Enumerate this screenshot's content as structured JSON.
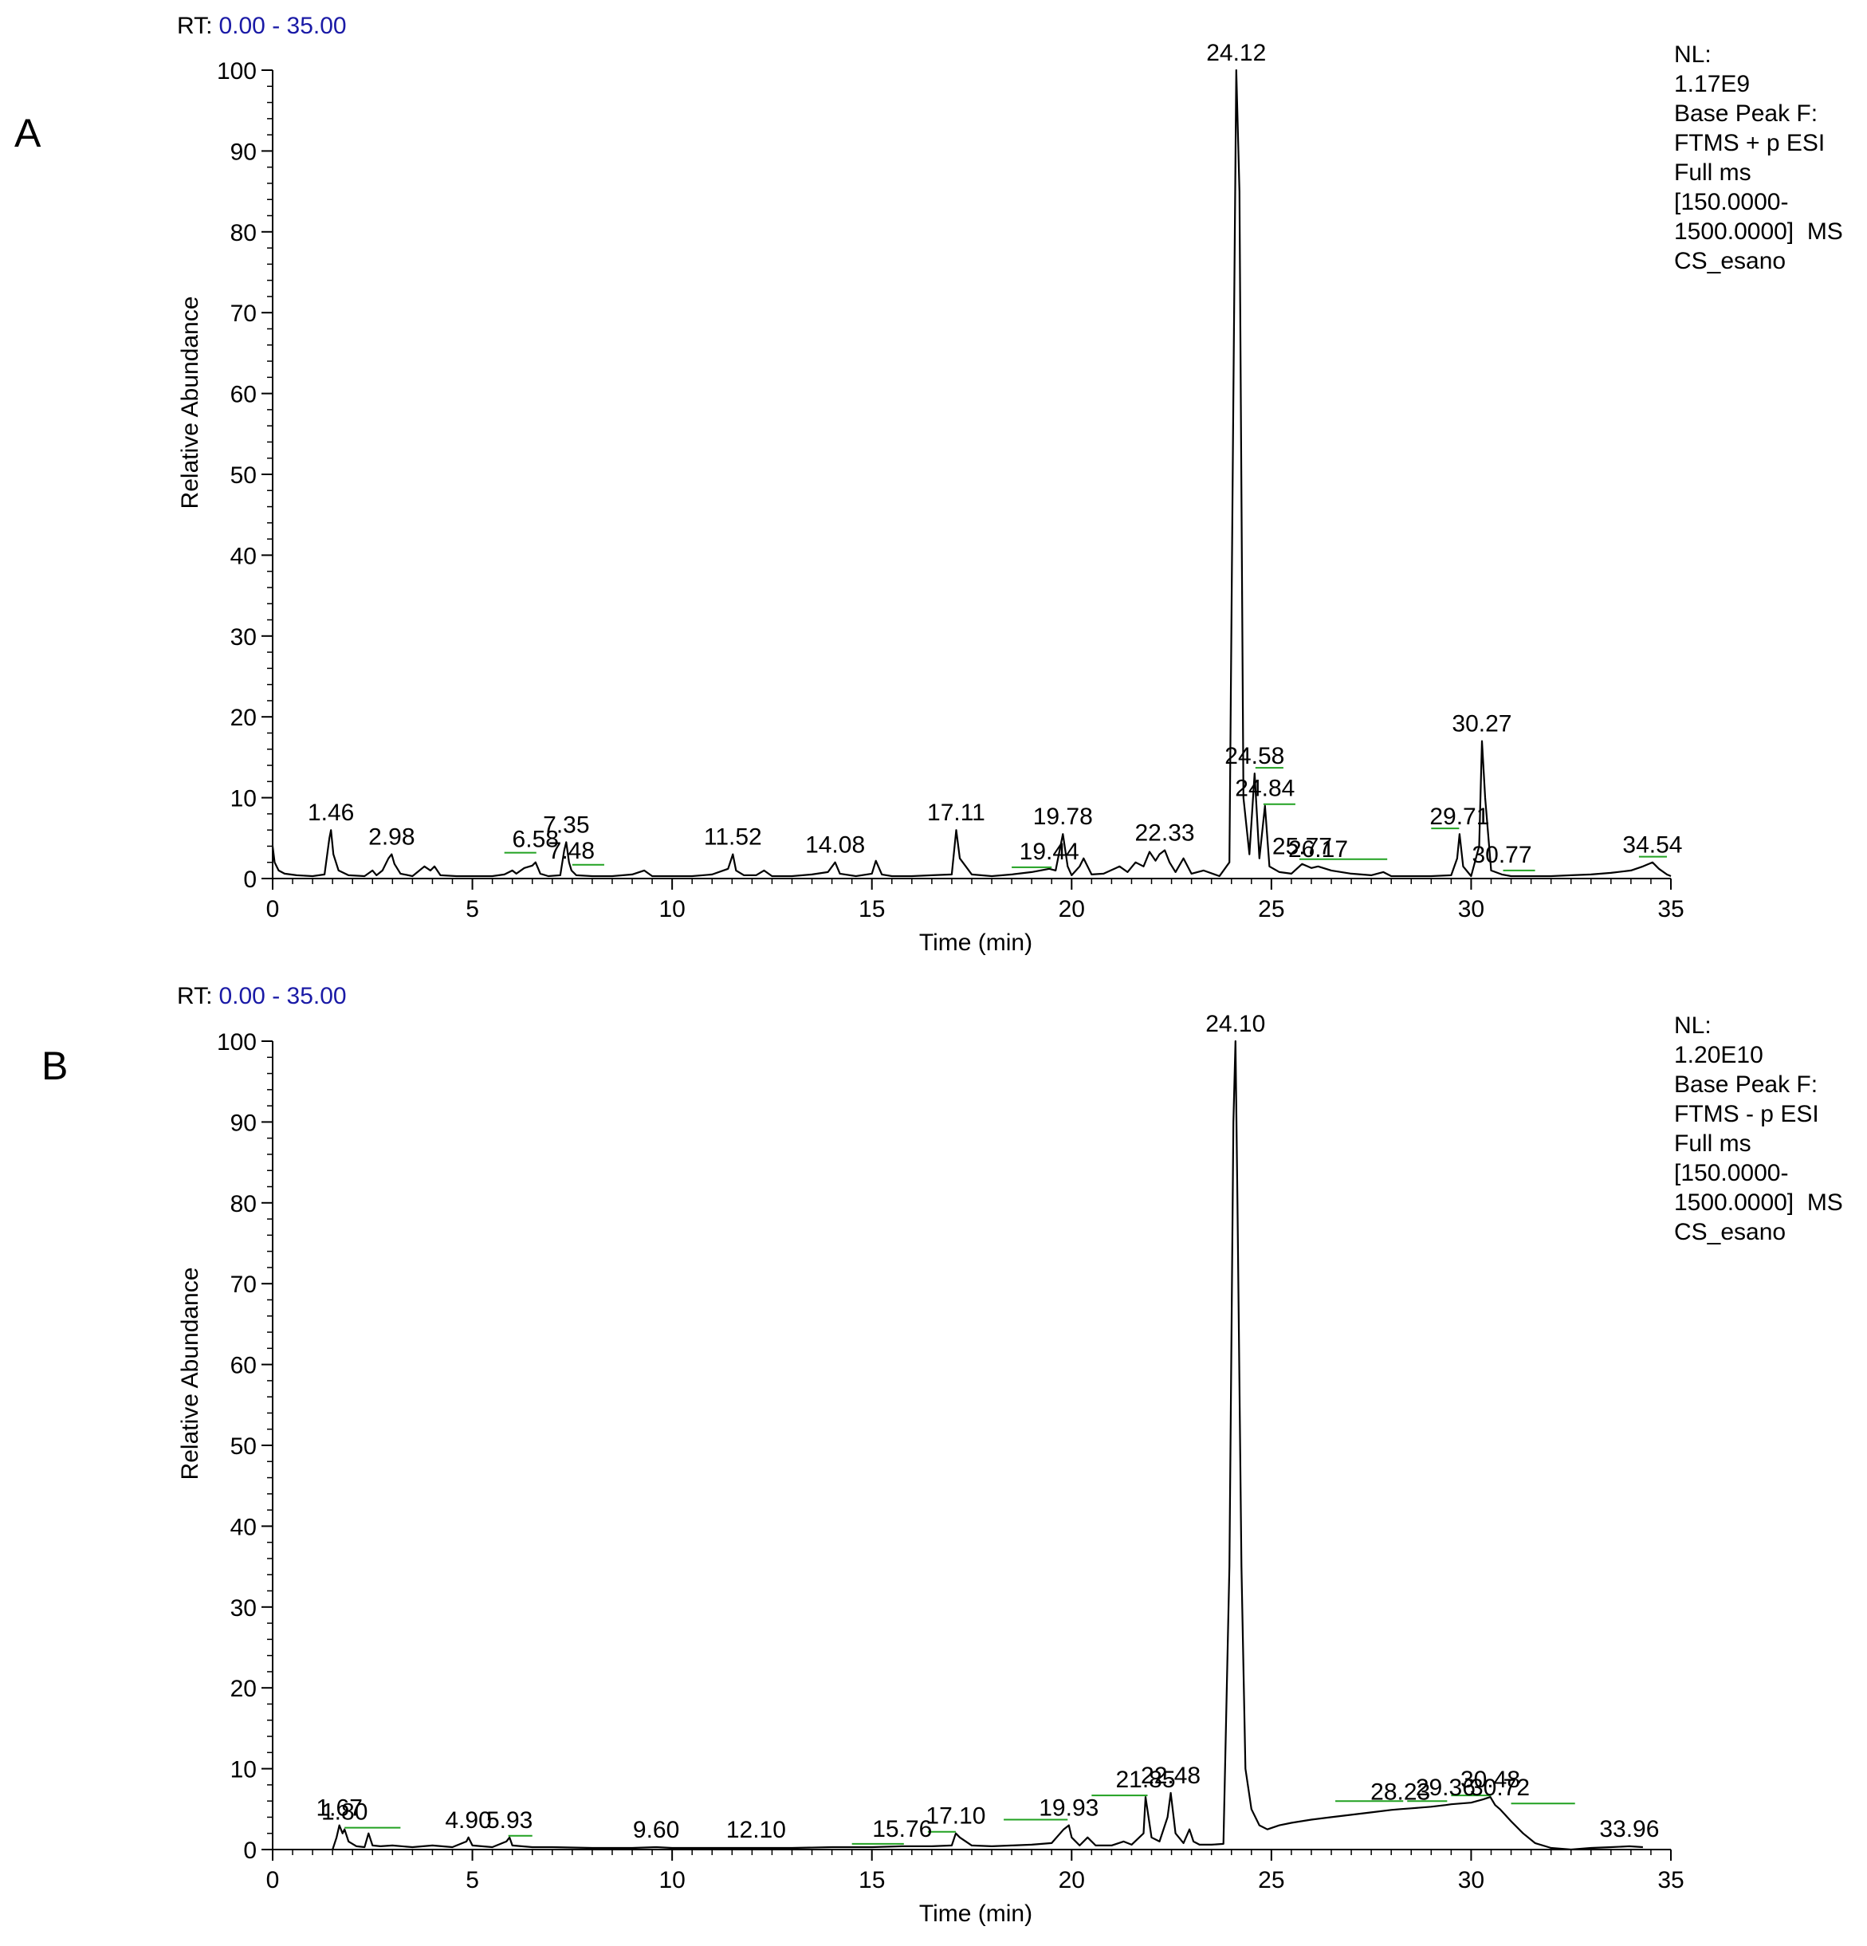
{
  "chart_data": [
    {
      "type": "line",
      "panel": "A",
      "rt_label": "RT:",
      "rt_range": "0.00 - 35.00",
      "xlabel": "Time (min)",
      "ylabel": "Relative Abundance",
      "xlim": [
        0,
        35
      ],
      "ylim": [
        0,
        100
      ],
      "x_ticks": [
        "0",
        "5",
        "10",
        "15",
        "20",
        "25",
        "30",
        "35"
      ],
      "y_ticks": [
        "0",
        "10",
        "20",
        "30",
        "40",
        "50",
        "60",
        "70",
        "80",
        "90",
        "100"
      ],
      "info": [
        "NL:",
        "1.17E9",
        "Base Peak F:",
        "FTMS + p ESI",
        "Full ms",
        "[150.0000-",
        "1500.0000]  MS",
        "CS_esano"
      ],
      "series": [
        {
          "x": [
            0,
            0.05,
            0.15,
            0.3,
            0.6,
            1.0,
            1.3,
            1.42,
            1.46,
            1.52,
            1.65,
            1.9,
            2.3,
            2.5,
            2.6,
            2.75,
            2.9,
            2.98,
            3.05,
            3.2,
            3.5,
            3.8,
            3.95,
            4.05,
            4.2,
            4.6,
            5.0,
            5.5,
            5.8,
            6.0,
            6.1,
            6.3,
            6.5,
            6.58,
            6.7,
            6.9,
            7.2,
            7.3,
            7.35,
            7.42,
            7.48,
            7.6,
            8.0,
            8.5,
            9.0,
            9.3,
            9.5,
            10.0,
            10.5,
            11.0,
            11.4,
            11.52,
            11.6,
            11.8,
            12.1,
            12.3,
            12.5,
            13.0,
            13.5,
            13.9,
            14.08,
            14.2,
            14.6,
            15.0,
            15.1,
            15.25,
            15.5,
            16.0,
            16.5,
            17.0,
            17.11,
            17.2,
            17.5,
            18.0,
            18.5,
            19.0,
            19.44,
            19.6,
            19.78,
            19.9,
            20.0,
            20.2,
            20.3,
            20.5,
            20.8,
            21.2,
            21.4,
            21.6,
            21.8,
            21.95,
            22.1,
            22.2,
            22.33,
            22.45,
            22.6,
            22.8,
            23.0,
            23.3,
            23.7,
            23.95,
            24.05,
            24.12,
            24.2,
            24.3,
            24.45,
            24.58,
            24.7,
            24.84,
            24.95,
            25.2,
            25.5,
            25.77,
            26.0,
            26.17,
            26.5,
            27.0,
            27.5,
            27.8,
            28.0,
            28.5,
            29.0,
            29.5,
            29.65,
            29.71,
            29.8,
            30.0,
            30.2,
            30.27,
            30.35,
            30.5,
            30.77,
            31.0,
            31.5,
            32.0,
            32.5,
            33.0,
            33.5,
            34.0,
            34.3,
            34.54,
            34.7,
            34.9,
            35.0
          ],
          "y": [
            4,
            2,
            1,
            0.6,
            0.4,
            0.3,
            0.5,
            5,
            6,
            3,
            1,
            0.4,
            0.3,
            1.0,
            0.4,
            1.0,
            2.5,
            3,
            1.8,
            0.6,
            0.3,
            1.5,
            1.0,
            1.5,
            0.4,
            0.3,
            0.3,
            0.3,
            0.5,
            1.0,
            0.6,
            1.3,
            1.6,
            2,
            0.6,
            0.3,
            0.4,
            3.5,
            4.5,
            2.0,
            1.0,
            0.4,
            0.3,
            0.3,
            0.5,
            1.0,
            0.3,
            0.3,
            0.3,
            0.5,
            1.2,
            3,
            1.0,
            0.4,
            0.4,
            1.0,
            0.3,
            0.3,
            0.5,
            0.8,
            2,
            0.6,
            0.3,
            0.6,
            2.2,
            0.5,
            0.3,
            0.3,
            0.4,
            0.5,
            6,
            2.5,
            0.5,
            0.3,
            0.5,
            0.8,
            1.2,
            1.0,
            5.5,
            1.5,
            0.4,
            1.5,
            2.5,
            0.5,
            0.6,
            1.5,
            0.8,
            2,
            1.5,
            3.3,
            2.2,
            3.0,
            3.5,
            2.0,
            0.8,
            2.5,
            0.6,
            1.0,
            0.3,
            2.0,
            60,
            100,
            85,
            10,
            3,
            13,
            2.5,
            9,
            1.5,
            0.8,
            0.6,
            1.8,
            1.3,
            1.5,
            1.0,
            0.6,
            0.4,
            0.8,
            0.3,
            0.3,
            0.3,
            0.4,
            2.5,
            5.5,
            1.5,
            0.3,
            4.0,
            17,
            10,
            1.0,
            0.5,
            0.3,
            0.3,
            0.3,
            0.4,
            0.5,
            0.7,
            1.0,
            1.5,
            2.0,
            1.2,
            0.5,
            0.3
          ]
        }
      ],
      "peak_labels": [
        {
          "text": "1.46",
          "x": 1.46,
          "y": 6
        },
        {
          "text": "2.98",
          "x": 2.98,
          "y": 3
        },
        {
          "text": "6.58",
          "x": 6.58,
          "y": 2.7
        },
        {
          "text": "7.35",
          "x": 7.35,
          "y": 4.5
        },
        {
          "text": "7.48",
          "x": 7.48,
          "y": 1.3
        },
        {
          "text": "11.52",
          "x": 11.52,
          "y": 3
        },
        {
          "text": "14.08",
          "x": 14.08,
          "y": 2
        },
        {
          "text": "17.11",
          "x": 17.11,
          "y": 6
        },
        {
          "text": "19.44",
          "x": 19.44,
          "y": 1.2
        },
        {
          "text": "19.78",
          "x": 19.78,
          "y": 5.5
        },
        {
          "text": "22.33",
          "x": 22.33,
          "y": 3.5
        },
        {
          "text": "24.12",
          "x": 24.12,
          "y": 100
        },
        {
          "text": "24.58",
          "x": 24.58,
          "y": 13
        },
        {
          "text": "24.84",
          "x": 24.84,
          "y": 9
        },
        {
          "text": "25.77",
          "x": 25.77,
          "y": 1.8
        },
        {
          "text": "26.17",
          "x": 26.17,
          "y": 1.5
        },
        {
          "text": "29.71",
          "x": 29.71,
          "y": 5.5
        },
        {
          "text": "30.27",
          "x": 30.27,
          "y": 17
        },
        {
          "text": "30.77",
          "x": 30.77,
          "y": 0.8
        },
        {
          "text": "34.54",
          "x": 34.54,
          "y": 2.0
        }
      ],
      "integration_marks": [
        {
          "from": 5.8,
          "to": 6.6,
          "y": 3.0
        },
        {
          "from": 7.5,
          "to": 8.3,
          "y": 1.5
        },
        {
          "from": 18.5,
          "to": 19.5,
          "y": 1.2
        },
        {
          "from": 24.6,
          "to": 25.3,
          "y": 13.5
        },
        {
          "from": 24.8,
          "to": 25.6,
          "y": 9
        },
        {
          "from": 25.7,
          "to": 26.2,
          "y": 2.2
        },
        {
          "from": 26.2,
          "to": 27.9,
          "y": 2.2
        },
        {
          "from": 29.0,
          "to": 29.7,
          "y": 6.0
        },
        {
          "from": 30.8,
          "to": 31.6,
          "y": 0.8
        },
        {
          "from": 34.2,
          "to": 34.9,
          "y": 2.5
        }
      ]
    },
    {
      "type": "line",
      "panel": "B",
      "rt_label": "RT:",
      "rt_range": "0.00 - 35.00",
      "xlabel": "Time (min)",
      "ylabel": "Relative Abundance",
      "xlim": [
        0,
        35
      ],
      "ylim": [
        0,
        100
      ],
      "x_ticks": [
        "0",
        "5",
        "10",
        "15",
        "20",
        "25",
        "30",
        "35"
      ],
      "y_ticks": [
        "0",
        "10",
        "20",
        "30",
        "40",
        "50",
        "60",
        "70",
        "80",
        "90",
        "100"
      ],
      "info": [
        "NL:",
        "1.20E10",
        "Base Peak F:",
        "FTMS - p ESI",
        "Full ms",
        "[150.0000-",
        "1500.0000]  MS",
        "CS_esano"
      ],
      "series": [
        {
          "x": [
            1.5,
            1.6,
            1.67,
            1.75,
            1.8,
            1.9,
            2.1,
            2.3,
            2.4,
            2.5,
            2.7,
            3.0,
            3.5,
            4.0,
            4.5,
            4.85,
            4.9,
            5.0,
            5.5,
            5.85,
            5.93,
            6.0,
            6.5,
            7.0,
            8.0,
            9.0,
            9.6,
            10.0,
            11.0,
            12.1,
            13.0,
            14.0,
            15.0,
            15.76,
            16.5,
            17.0,
            17.1,
            17.2,
            17.5,
            18.0,
            18.5,
            19.0,
            19.5,
            19.8,
            19.93,
            20.0,
            20.2,
            20.4,
            20.6,
            21.0,
            21.3,
            21.5,
            21.8,
            21.85,
            22.0,
            22.2,
            22.4,
            22.48,
            22.6,
            22.8,
            22.95,
            23.05,
            23.2,
            23.5,
            23.8,
            23.95,
            24.05,
            24.1,
            24.15,
            24.25,
            24.35,
            24.5,
            24.7,
            24.9,
            25.2,
            25.5,
            26.0,
            26.5,
            27.0,
            27.5,
            28.0,
            28.23,
            28.5,
            29.0,
            29.36,
            29.5,
            30.0,
            30.3,
            30.48,
            30.6,
            30.72,
            31.0,
            31.3,
            31.6,
            32.0,
            32.5,
            33.0,
            33.5,
            33.96,
            34.3
          ],
          "y": [
            0,
            1.5,
            3,
            2.0,
            2.5,
            1.0,
            0.4,
            0.3,
            2.0,
            0.5,
            0.4,
            0.5,
            0.3,
            0.5,
            0.3,
            1.0,
            1.5,
            0.5,
            0.3,
            1.0,
            1.5,
            0.5,
            0.3,
            0.3,
            0.2,
            0.2,
            0.3,
            0.2,
            0.2,
            0.2,
            0.2,
            0.3,
            0.3,
            0.4,
            0.4,
            0.5,
            2,
            1.5,
            0.5,
            0.4,
            0.5,
            0.6,
            0.8,
            2.5,
            3,
            1.5,
            0.5,
            1.5,
            0.5,
            0.5,
            1.0,
            0.6,
            2.0,
            6.5,
            1.5,
            1.0,
            4.0,
            7,
            2.0,
            0.8,
            2.5,
            1.0,
            0.6,
            0.6,
            0.7,
            35,
            90,
            100,
            80,
            35,
            10,
            5,
            3.0,
            2.5,
            3.0,
            3.3,
            3.7,
            4.0,
            4.3,
            4.6,
            4.9,
            5.0,
            5.1,
            5.3,
            5.5,
            5.6,
            5.8,
            6.2,
            6.5,
            5.5,
            5.0,
            3.5,
            2.0,
            0.8,
            0.2,
            0.0,
            0.2,
            0.3,
            0.4,
            0.3
          ]
        }
      ],
      "peak_labels": [
        {
          "text": "1.67",
          "x": 1.67,
          "y": 3
        },
        {
          "text": "1.80",
          "x": 1.8,
          "y": 2.5
        },
        {
          "text": "4.90",
          "x": 4.9,
          "y": 1.5
        },
        {
          "text": "5.93",
          "x": 5.93,
          "y": 1.5
        },
        {
          "text": "9.60",
          "x": 9.6,
          "y": 0.3
        },
        {
          "text": "12.10",
          "x": 12.1,
          "y": 0.3
        },
        {
          "text": "15.76",
          "x": 15.76,
          "y": 0.4
        },
        {
          "text": "17.10",
          "x": 17.1,
          "y": 2
        },
        {
          "text": "19.93",
          "x": 19.93,
          "y": 3
        },
        {
          "text": "21.85",
          "x": 21.85,
          "y": 6.5
        },
        {
          "text": "22.48",
          "x": 22.48,
          "y": 7
        },
        {
          "text": "24.10",
          "x": 24.1,
          "y": 100
        },
        {
          "text": "28.23",
          "x": 28.23,
          "y": 5.0
        },
        {
          "text": "29.36",
          "x": 29.36,
          "y": 5.5
        },
        {
          "text": "30.48",
          "x": 30.48,
          "y": 6.5
        },
        {
          "text": "30.72",
          "x": 30.72,
          "y": 5.5
        },
        {
          "text": "33.96",
          "x": 33.96,
          "y": 0.4
        }
      ],
      "integration_marks": [
        {
          "from": 1.8,
          "to": 3.2,
          "y": 2.5
        },
        {
          "from": 5.9,
          "to": 6.5,
          "y": 1.5
        },
        {
          "from": 14.5,
          "to": 15.8,
          "y": 0.5
        },
        {
          "from": 16.4,
          "to": 17.1,
          "y": 2.0
        },
        {
          "from": 18.3,
          "to": 19.9,
          "y": 3.5
        },
        {
          "from": 20.5,
          "to": 21.9,
          "y": 6.5
        },
        {
          "from": 26.6,
          "to": 28.3,
          "y": 5.8
        },
        {
          "from": 28.4,
          "to": 29.4,
          "y": 5.8
        },
        {
          "from": 29.5,
          "to": 30.5,
          "y": 6.5
        },
        {
          "from": 31.0,
          "to": 32.6,
          "y": 5.5
        }
      ]
    }
  ],
  "colors": {
    "trace": "#000000",
    "axis": "#000000",
    "rt_range": "#1a1aa6",
    "integration": "#21a121"
  }
}
